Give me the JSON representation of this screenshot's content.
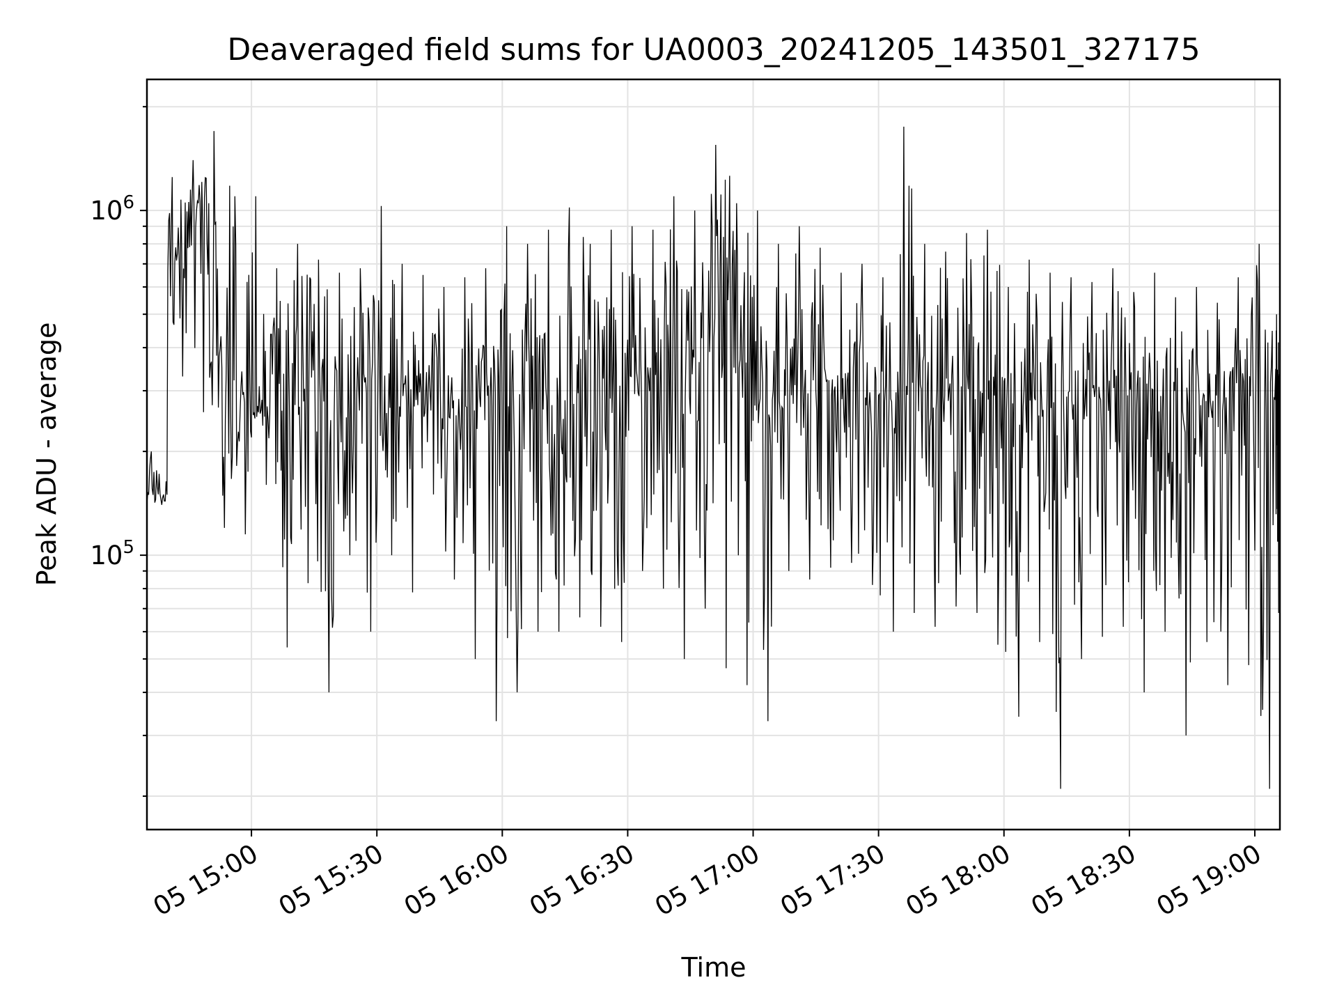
{
  "chart_data": {
    "type": "line",
    "title": "Deaveraged field sums for UA0003_20241205_143501_327175",
    "xlabel": "Time",
    "ylabel": "Peak ADU - average",
    "yscale": "log",
    "ylim": [
      16000,
      2400000
    ],
    "xlim": [
      "2024-12-05 14:35",
      "2024-12-05 19:06"
    ],
    "x_ticks": [
      "05 15:00",
      "05 15:30",
      "05 16:00",
      "05 16:30",
      "05 17:00",
      "05 17:30",
      "05 18:00",
      "05 18:30",
      "05 19:00"
    ],
    "y_ticks": [
      {
        "base": "10",
        "exp": "5",
        "value": 100000
      },
      {
        "base": "10",
        "exp": "6",
        "value": 1000000
      }
    ],
    "grid": true,
    "line_color": "#000000",
    "series": [
      {
        "x": [
          "2024-12-05 14:35",
          "2024-12-05 14:40",
          "2024-12-05 14:45",
          "2024-12-05 14:50",
          "2024-12-05 14:55",
          "2024-12-05 15:00",
          "2024-12-05 15:05",
          "2024-12-05 15:10",
          "2024-12-05 15:15",
          "2024-12-05 15:20",
          "2024-12-05 15:25",
          "2024-12-05 15:30",
          "2024-12-05 15:35",
          "2024-12-05 15:40",
          "2024-12-05 15:45",
          "2024-12-05 15:50",
          "2024-12-05 15:55",
          "2024-12-05 16:00",
          "2024-12-05 16:05",
          "2024-12-05 16:10",
          "2024-12-05 16:15",
          "2024-12-05 16:20",
          "2024-12-05 16:25",
          "2024-12-05 16:30",
          "2024-12-05 16:35",
          "2024-12-05 16:40",
          "2024-12-05 16:45",
          "2024-12-05 16:50",
          "2024-12-05 16:55",
          "2024-12-05 17:00",
          "2024-12-05 17:05",
          "2024-12-05 17:10",
          "2024-12-05 17:15",
          "2024-12-05 17:20",
          "2024-12-05 17:25",
          "2024-12-05 17:30",
          "2024-12-05 17:35",
          "2024-12-05 17:40",
          "2024-12-05 17:45",
          "2024-12-05 17:50",
          "2024-12-05 17:55",
          "2024-12-05 18:00",
          "2024-12-05 18:05",
          "2024-12-05 18:10",
          "2024-12-05 18:15",
          "2024-12-05 18:20",
          "2024-12-05 18:25",
          "2024-12-05 18:30",
          "2024-12-05 18:35",
          "2024-12-05 18:40",
          "2024-12-05 18:45",
          "2024-12-05 18:50",
          "2024-12-05 18:55",
          "2024-12-05 19:00",
          "2024-12-05 19:05"
        ],
        "values": [
          150000,
          750000,
          1050000,
          380000,
          300000,
          260000,
          330000,
          300000,
          280000,
          270000,
          310000,
          260000,
          280000,
          300000,
          250000,
          270000,
          300000,
          290000,
          310000,
          280000,
          300000,
          290000,
          310000,
          330000,
          300000,
          320000,
          380000,
          420000,
          350000,
          260000,
          290000,
          310000,
          300000,
          270000,
          250000,
          280000,
          320000,
          300000,
          290000,
          300000,
          330000,
          270000,
          250000,
          230000,
          260000,
          280000,
          300000,
          310000,
          290000,
          270000,
          280000,
          300000,
          290000,
          310000,
          300000
        ],
        "max": [
          200000,
          1250000,
          1400000,
          1700000,
          1100000,
          1100000,
          680000,
          800000,
          720000,
          660000,
          680000,
          1030000,
          700000,
          650000,
          600000,
          640000,
          680000,
          900000,
          800000,
          880000,
          1020000,
          800000,
          880000,
          900000,
          880000,
          1100000,
          1000000,
          1550000,
          1050000,
          1000000,
          800000,
          900000,
          780000,
          660000,
          700000,
          640000,
          1750000,
          800000,
          760000,
          860000,
          880000,
          600000,
          720000,
          660000,
          640000,
          620000,
          680000,
          580000,
          660000,
          560000,
          600000,
          540000,
          640000,
          800000,
          500000
        ],
        "min": [
          140000,
          330000,
          260000,
          120000,
          115000,
          160000,
          54000,
          83000,
          40000,
          100000,
          60000,
          100000,
          78000,
          150000,
          85000,
          50000,
          33000,
          40000,
          60000,
          60000,
          66000,
          62000,
          56000,
          90000,
          80000,
          50000,
          70000,
          47000,
          42000,
          33000,
          90000,
          85000,
          92000,
          95000,
          82000,
          60000,
          68000,
          62000,
          71000,
          68000,
          55000,
          34000,
          56000,
          21000,
          50000,
          58000,
          62000,
          40000,
          60000,
          30000,
          56000,
          42000,
          48000,
          21000,
          68000
        ]
      }
    ]
  }
}
